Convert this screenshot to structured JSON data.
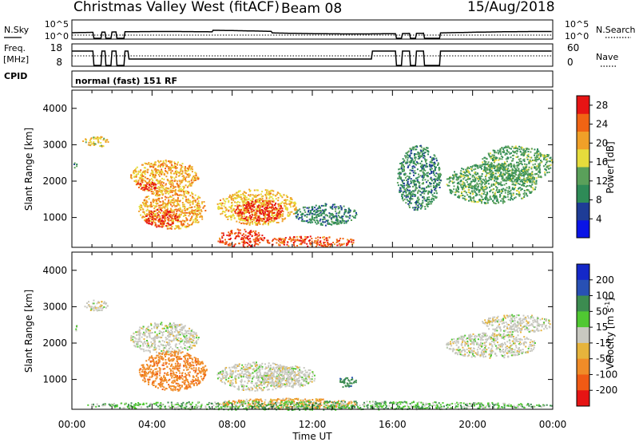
{
  "header": {
    "station": "Christmas Valley West (fitACF)",
    "beam": "Beam 08",
    "date": "15/Aug/2018"
  },
  "params": {
    "nsky_label": "N.Sky",
    "nsky_scale_top": "10^5",
    "nsky_scale_bottom": "10^0",
    "nsearch_label": "N.Search",
    "nsearch_scale_top": "10^5",
    "nsearch_scale_bottom": "10^0",
    "freq_label_line1": "Freq.",
    "freq_label_line2": "[MHz]",
    "freq_scale_top": "18",
    "freq_scale_bottom": "8",
    "nave_label": "Nave",
    "nave_scale_top": "60",
    "nave_scale_bottom": "0",
    "cpid_label": "CPID",
    "cpid_value": "normal (fast) 151 RF"
  },
  "time_axis": {
    "label": "Time UT",
    "ticks": [
      "00:00",
      "04:00",
      "08:00",
      "12:00",
      "16:00",
      "20:00",
      "00:00"
    ]
  },
  "range_axis": {
    "label": "Slant Range [km]",
    "ticks": [
      "1000",
      "2000",
      "3000",
      "4000"
    ]
  },
  "power_scale": {
    "label": "Power [dB]",
    "ticks": [
      "4",
      "8",
      "12",
      "16",
      "20",
      "24",
      "28"
    ],
    "colors": [
      "#0a14e6",
      "#1e3c96",
      "#2e8b57",
      "#5aa05a",
      "#e6dc3c",
      "#f0a028",
      "#f06414",
      "#e61414"
    ]
  },
  "velocity_scale": {
    "label": "Velocity [m s",
    "label_sup": "-1",
    "label_end": "]",
    "ticks": [
      "200",
      "100",
      "50",
      "15",
      "-15",
      "-50",
      "-100",
      "-200"
    ],
    "colors": [
      "#1428c8",
      "#2850b4",
      "#3c8c50",
      "#50c832",
      "#c8c8c0",
      "#e6b43c",
      "#f08c28",
      "#f05a14",
      "#e61414"
    ]
  },
  "chart_data": {
    "type": "heatmap",
    "x_unit": "hours UT",
    "xlim": [
      0,
      24
    ],
    "ylim": [
      180,
      4500
    ],
    "panels": [
      {
        "name": "power",
        "clim": [
          0,
          30
        ],
        "blobs": [
          {
            "t": [
              0.05,
              0.25
            ],
            "r": [
              2350,
              2550
            ],
            "v": 10
          },
          {
            "t": [
              0.5,
              1.8
            ],
            "r": [
              2950,
              3250
            ],
            "v": 18
          },
          {
            "t": [
              2.9,
              6.3
            ],
            "r": [
              1700,
              2600
            ],
            "v": 20
          },
          {
            "t": [
              3.1,
              4.3
            ],
            "r": [
              1750,
              2000
            ],
            "v": 27
          },
          {
            "t": [
              3.3,
              6.7
            ],
            "r": [
              700,
              1800
            ],
            "v": 20
          },
          {
            "t": [
              3.6,
              5.3
            ],
            "r": [
              750,
              1250
            ],
            "v": 28
          },
          {
            "t": [
              7.2,
              11.2
            ],
            "r": [
              800,
              1800
            ],
            "v": 19
          },
          {
            "t": [
              8.1,
              10.6
            ],
            "r": [
              900,
              1500
            ],
            "v": 28
          },
          {
            "t": [
              7.2,
              9.6
            ],
            "r": [
              200,
              700
            ],
            "v": 26
          },
          {
            "t": [
              9.6,
              14.2
            ],
            "r": [
              200,
              500
            ],
            "v": 25
          },
          {
            "t": [
              11.1,
              14.2
            ],
            "r": [
              800,
              1400
            ],
            "v": 9
          },
          {
            "t": [
              18.6,
              23.2
            ],
            "r": [
              1400,
              2500
            ],
            "v": 12
          },
          {
            "t": [
              20.4,
              24.0
            ],
            "r": [
              2000,
              3000
            ],
            "v": 12
          },
          {
            "t": [
              16.2,
              18.4
            ],
            "r": [
              1200,
              3000
            ],
            "v": 10
          }
        ]
      },
      {
        "name": "velocity",
        "clim": [
          -200,
          200
        ],
        "blobs": [
          {
            "t": [
              0.05,
              0.25
            ],
            "r": [
              2350,
              2550
            ],
            "v": 0
          },
          {
            "t": [
              0.6,
              1.8
            ],
            "r": [
              2900,
              3200
            ],
            "v": 0
          },
          {
            "t": [
              2.9,
              6.3
            ],
            "r": [
              1700,
              2600
            ],
            "v": 0
          },
          {
            "t": [
              3.3,
              6.7
            ],
            "r": [
              700,
              1800
            ],
            "v": -60
          },
          {
            "t": [
              7.2,
              11.2
            ],
            "r": [
              700,
              1500
            ],
            "v": 0
          },
          {
            "t": [
              9.4,
              12.2
            ],
            "r": [
              800,
              1400
            ],
            "v": 0
          },
          {
            "t": [
              13.2,
              14.2
            ],
            "r": [
              800,
              1100
            ],
            "v": 60
          },
          {
            "t": [
              7.2,
              14.2
            ],
            "r": [
              200,
              500
            ],
            "v": -30
          },
          {
            "t": [
              0.4,
              24.0
            ],
            "r": [
              180,
              420
            ],
            "v": 25
          },
          {
            "t": [
              18.6,
              23.2
            ],
            "r": [
              1600,
              2300
            ],
            "v": 0
          },
          {
            "t": [
              20.4,
              24.0
            ],
            "r": [
              2300,
              2800
            ],
            "v": 0
          }
        ]
      }
    ]
  }
}
